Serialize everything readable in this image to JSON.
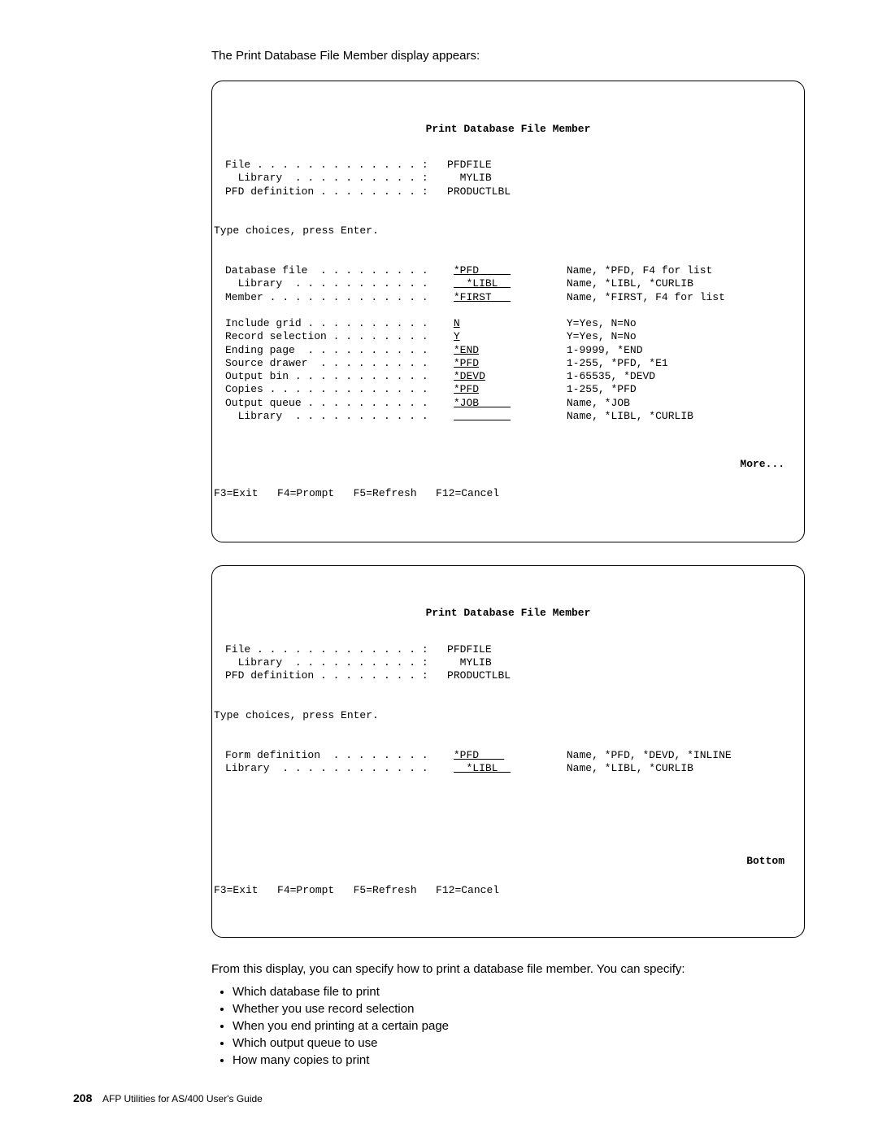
{
  "intro": "The Print Database File Member display appears:",
  "screen1": {
    "title": "Print Database File Member",
    "header": {
      "file_label": "File . . . . . . . . . . . . . :",
      "file_value": "PFDFILE",
      "lib_label": "  Library  . . . . . . . . . . :",
      "lib_value": "MYLIB",
      "pfd_label": "PFD definition . . . . . . . . :",
      "pfd_value": "PRODUCTLBL"
    },
    "instruction": "Type choices, press Enter.",
    "fields": [
      {
        "label": "Database file  . . . . . . . . .",
        "value": "*PFD     ",
        "hint": "Name, *PFD, F4 for list",
        "u": true
      },
      {
        "label": "  Library  . . . . . . . . . . .",
        "value": "  *LIBL  ",
        "hint": "Name, *LIBL, *CURLIB",
        "u": true
      },
      {
        "label": "Member . . . . . . . . . . . . .",
        "value": "*FIRST   ",
        "hint": "Name, *FIRST, F4 for list",
        "u": true
      },
      {
        "label": "",
        "value": "",
        "hint": "",
        "u": false
      },
      {
        "label": "Include grid . . . . . . . . . .",
        "value": "N",
        "hint": "Y=Yes, N=No",
        "u": true
      },
      {
        "label": "Record selection . . . . . . . .",
        "value": "Y",
        "hint": "Y=Yes, N=No",
        "u": true
      },
      {
        "label": "Ending page  . . . . . . . . . .",
        "value": "*END",
        "hint": "1-9999, *END",
        "u": true
      },
      {
        "label": "Source drawer  . . . . . . . . .",
        "value": "*PFD",
        "hint": "1-255, *PFD, *E1",
        "u": true
      },
      {
        "label": "Output bin . . . . . . . . . . .",
        "value": "*DEVD",
        "hint": "1-65535, *DEVD",
        "u": true
      },
      {
        "label": "Copies . . . . . . . . . . . . .",
        "value": "*PFD",
        "hint": "1-255, *PFD",
        "u": true
      },
      {
        "label": "Output queue . . . . . . . . . .",
        "value": "*JOB     ",
        "hint": "Name, *JOB",
        "u": true
      },
      {
        "label": "  Library  . . . . . . . . . . .",
        "value": "         ",
        "hint": "Name, *LIBL, *CURLIB",
        "u": true
      }
    ],
    "more": "More...",
    "fkeys": "F3=Exit   F4=Prompt   F5=Refresh   F12=Cancel"
  },
  "screen2": {
    "title": "Print Database File Member",
    "header": {
      "file_label": "File . . . . . . . . . . . . . :",
      "file_value": "PFDFILE",
      "lib_label": "  Library  . . . . . . . . . . :",
      "lib_value": "MYLIB",
      "pfd_label": "PFD definition . . . . . . . . :",
      "pfd_value": "PRODUCTLBL"
    },
    "instruction": "Type choices, press Enter.",
    "fields": [
      {
        "label": "Form definition  . . . . . . . .",
        "value": "*PFD    ",
        "hint": "Name, *PFD, *DEVD, *INLINE",
        "u": true
      },
      {
        "label": "Library  . . . . . . . . . . . .",
        "value": "  *LIBL  ",
        "hint": "Name, *LIBL, *CURLIB",
        "u": true
      }
    ],
    "bottom": "Bottom",
    "fkeys": "F3=Exit   F4=Prompt   F5=Refresh   F12=Cancel"
  },
  "outro": "From this display, you can specify how to print a database file member.  You can specify:",
  "bullets": [
    "Which database file to print",
    "Whether you use record selection",
    "When you end printing at a certain page",
    "Which output queue to use",
    "How many copies to print"
  ],
  "footer": {
    "page": "208",
    "doc": "AFP Utilities for AS/400 User's Guide"
  }
}
